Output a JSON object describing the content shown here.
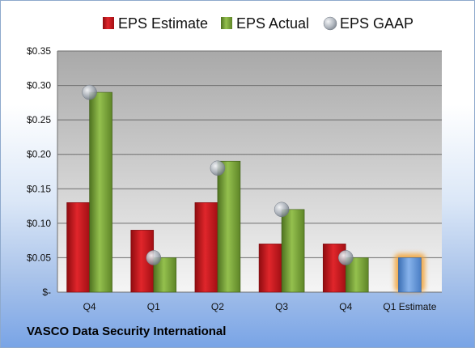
{
  "company": "VASCO Data Security International",
  "chart_data": {
    "type": "bar",
    "categories": [
      "Q4",
      "Q1",
      "Q2",
      "Q3",
      "Q4",
      "Q1 Estimate"
    ],
    "series": [
      {
        "name": "EPS Estimate",
        "color": "#c0141b",
        "values": [
          0.13,
          0.09,
          0.13,
          0.07,
          0.07,
          null
        ]
      },
      {
        "name": "EPS Actual",
        "color": "#6f9a2c",
        "values": [
          0.29,
          0.05,
          0.19,
          0.12,
          0.05,
          null
        ]
      },
      {
        "name": "EPS GAAP",
        "color": "#9ea7b2",
        "values": [
          0.29,
          0.05,
          0.18,
          0.12,
          0.05,
          null
        ]
      },
      {
        "name": "",
        "color": "#5b8fd2",
        "highlight": "#f3a235",
        "values": [
          null,
          null,
          null,
          null,
          null,
          0.05
        ]
      }
    ],
    "ylim": [
      0,
      0.35
    ],
    "yticks": [
      0,
      0.05,
      0.1,
      0.15,
      0.2,
      0.25,
      0.3,
      0.35
    ],
    "ytick_labels": [
      "$-",
      "$0.05",
      "$0.10",
      "$0.15",
      "$0.20",
      "$0.25",
      "$0.30",
      "$0.35"
    ],
    "legend_position": "top",
    "grid": true
  }
}
